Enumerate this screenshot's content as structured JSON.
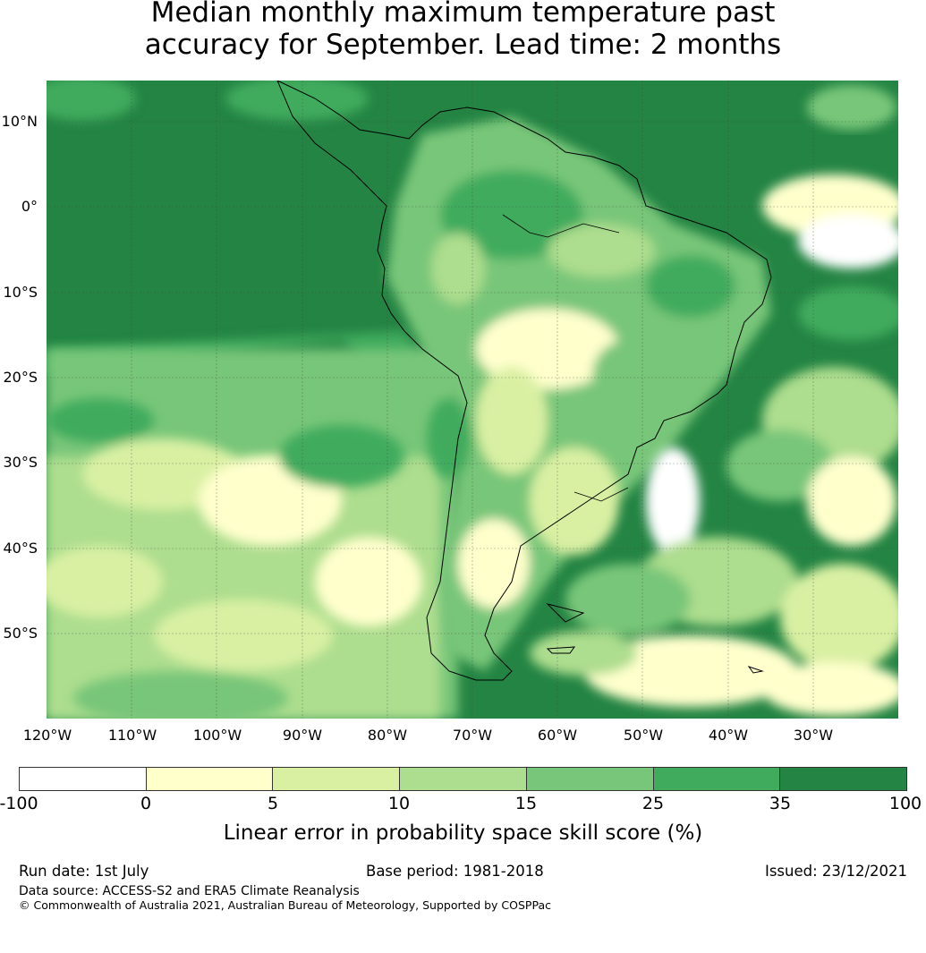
{
  "title": {
    "line1": "Median monthly maximum temperature past",
    "line2": "accuracy for September. Lead time: 2 months"
  },
  "map": {
    "lat_labels": [
      "10°N",
      "0°",
      "10°S",
      "20°S",
      "30°S",
      "40°S",
      "50°S"
    ],
    "lon_labels": [
      "120°W",
      "110°W",
      "100°W",
      "90°W",
      "80°W",
      "70°W",
      "60°W",
      "50°W",
      "40°W",
      "30°W"
    ],
    "extent": {
      "lon": [
        -120,
        -20
      ],
      "lat": [
        -60,
        15
      ]
    }
  },
  "colorbar": {
    "ticks": [
      "-100",
      "0",
      "5",
      "10",
      "15",
      "25",
      "35",
      "100"
    ],
    "colors": [
      "#ffffff",
      "#ffffcc",
      "#d9f0a3",
      "#addd8e",
      "#78c679",
      "#41ab5d",
      "#238443"
    ],
    "label": "Linear error in probability space skill score (%)"
  },
  "footer": {
    "run_date": "Run date: 1st July",
    "base_period": "Base period: 1981-2018",
    "issued": "Issued: 23/12/2021",
    "data_source": "Data source: ACCESS-S2 and ERA5 Climate Reanalysis",
    "copyright": "© Commonwealth of Australia 2021, Australian Bureau of Meteorology, Supported by COSPPac"
  }
}
